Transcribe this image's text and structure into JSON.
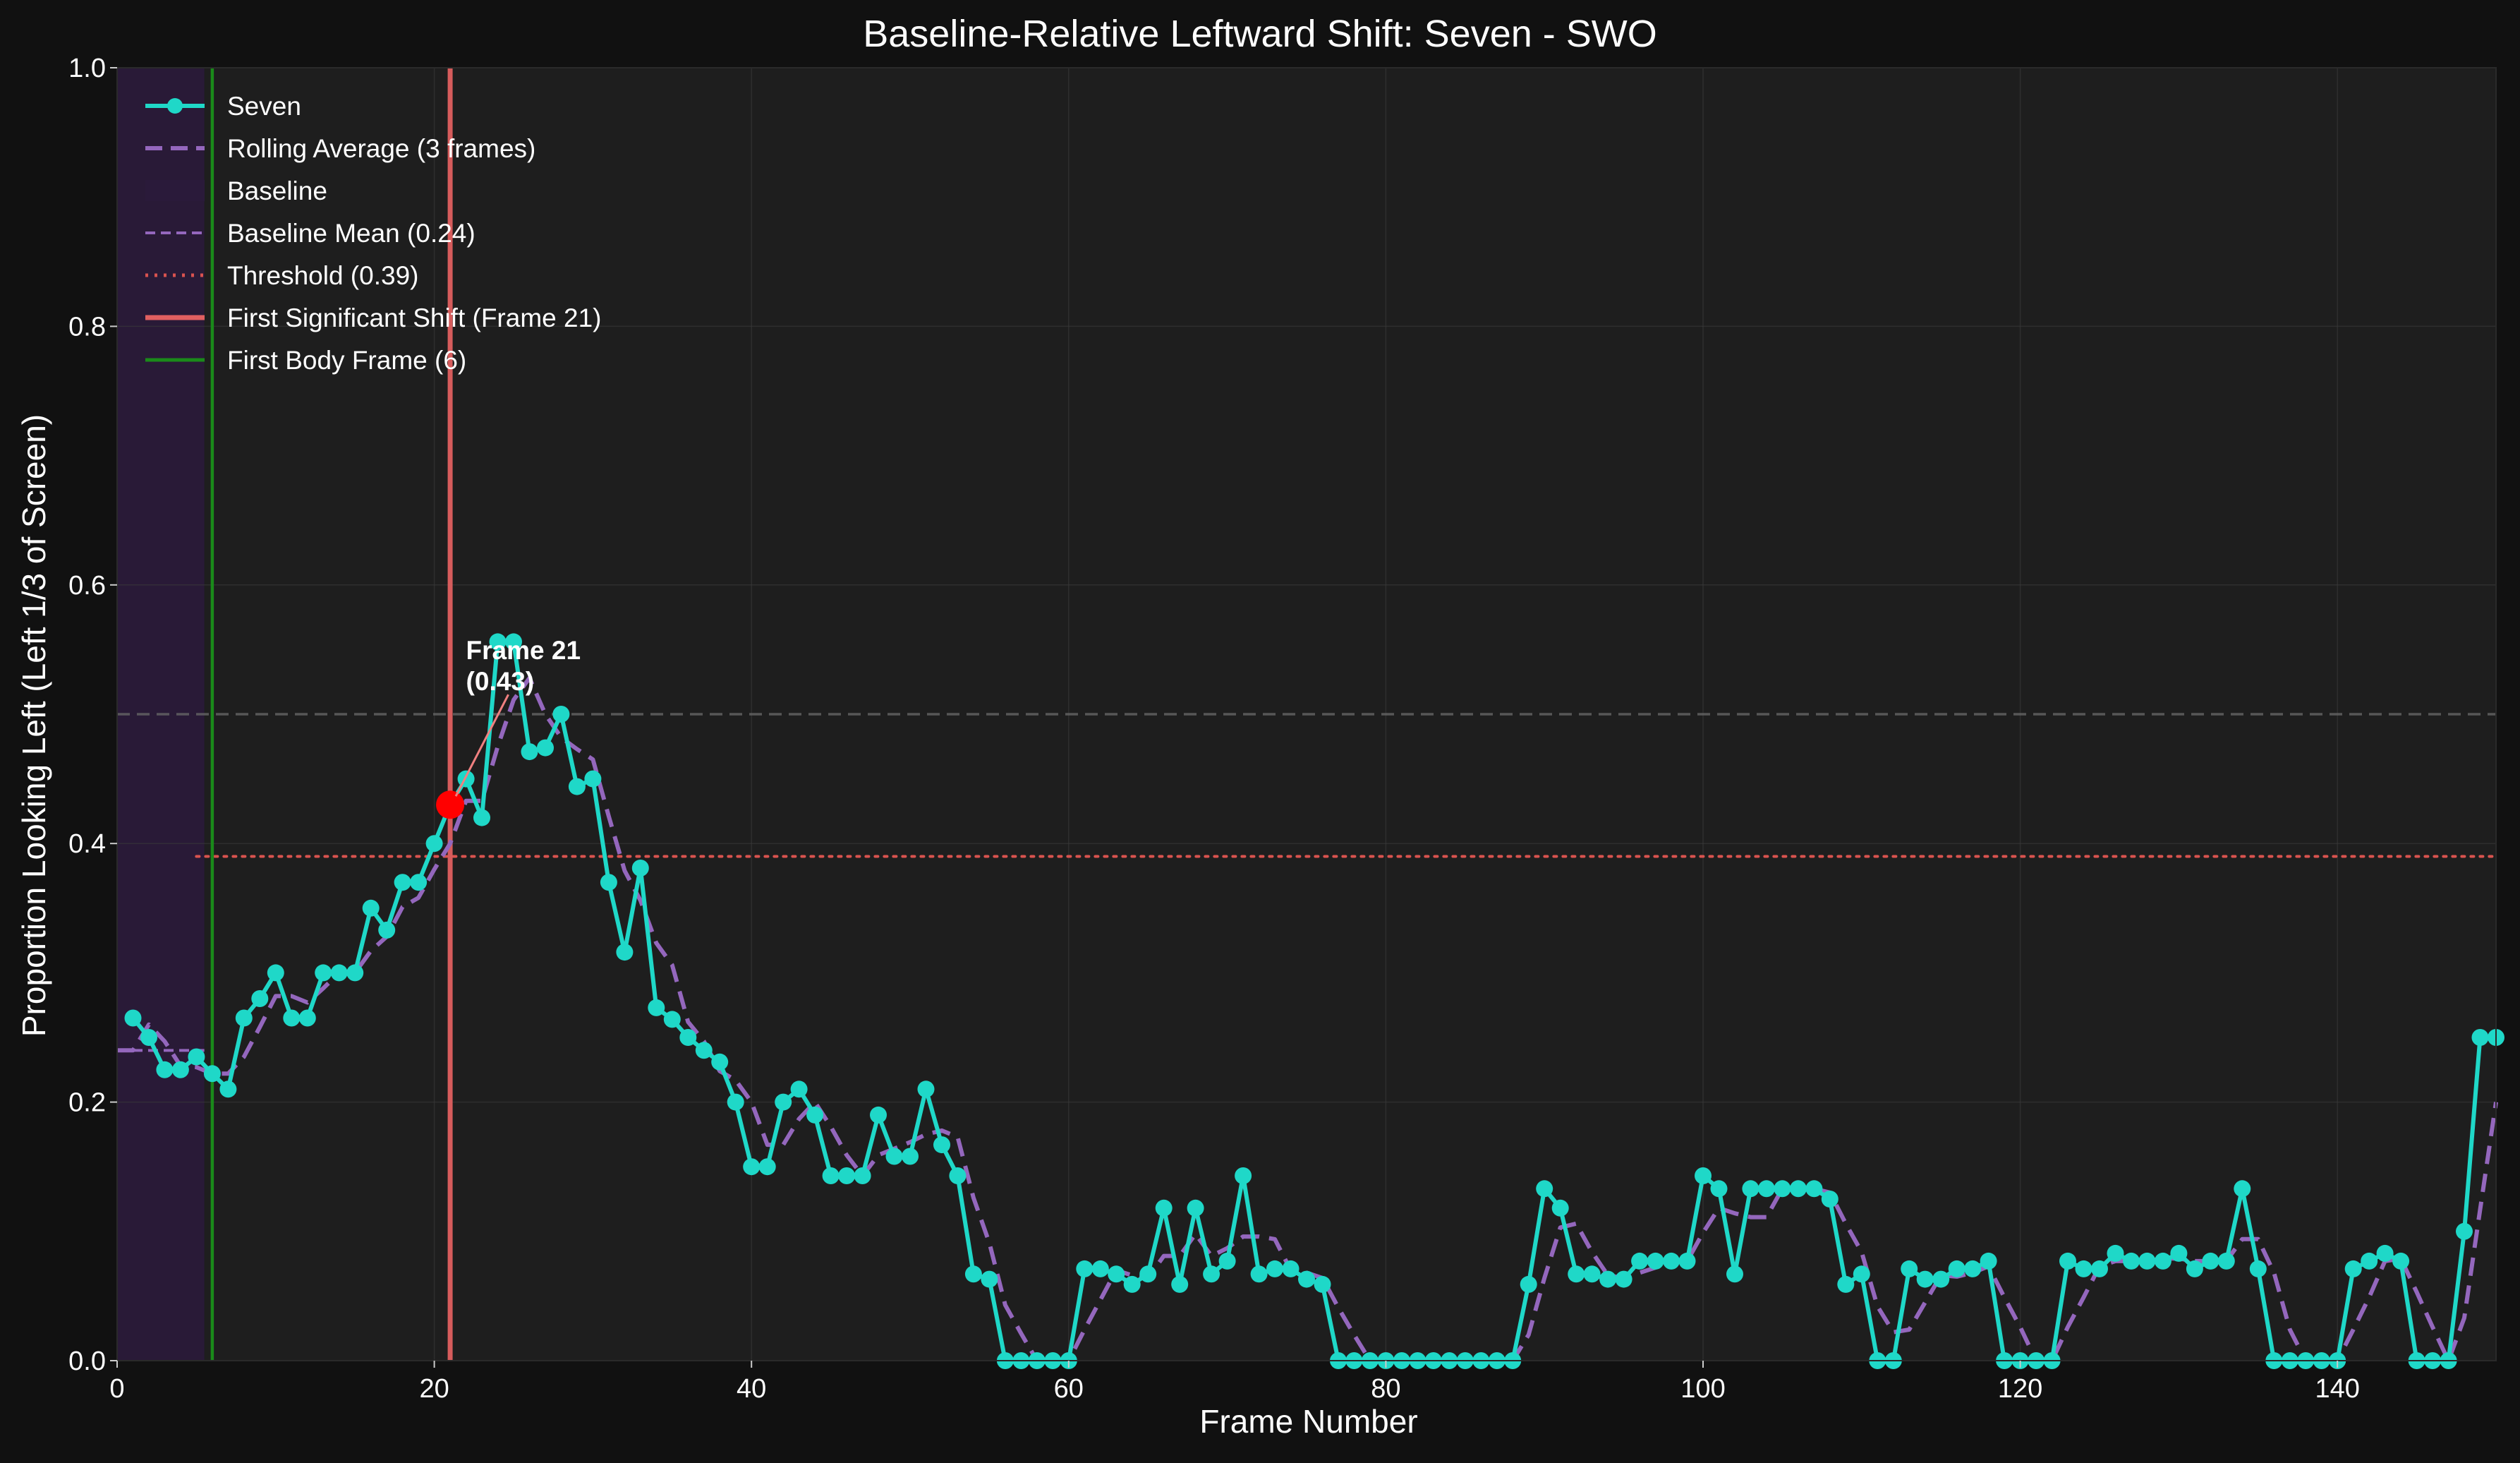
{
  "chart_data": {
    "type": "line",
    "title": "Baseline-Relative Leftward Shift: Seven - SWO",
    "xlabel": "Frame Number",
    "ylabel": "Proportion Looking Left (Left 1/3 of Screen)",
    "xlim": [
      0,
      150
    ],
    "ylim": [
      0,
      1.0
    ],
    "x_ticks": [
      0,
      20,
      40,
      60,
      80,
      100,
      120,
      140
    ],
    "y_ticks": [
      0.0,
      0.2,
      0.4,
      0.6,
      0.8,
      1.0
    ],
    "x_tick_labels": [
      "0",
      "20",
      "40",
      "60",
      "80",
      "100",
      "120",
      "140"
    ],
    "y_tick_labels": [
      "0.0",
      "0.2",
      "0.4",
      "0.6",
      "0.8",
      "1.0"
    ],
    "grid": true,
    "legend_position": "top-left",
    "colors": {
      "series": "#1fd8c8",
      "rolling": "#9467bd",
      "baseline_span": "#2a1a3a",
      "threshold": "#d9534f",
      "shift_line": "#e06060",
      "body_line": "#1a8a1a",
      "reference_line": "#666666",
      "marker_highlight": "#ff0000"
    },
    "series": [
      {
        "name": "Seven",
        "x": [
          1,
          2,
          3,
          4,
          5,
          6,
          7,
          8,
          9,
          10,
          11,
          12,
          13,
          14,
          15,
          16,
          17,
          18,
          19,
          20,
          21,
          22,
          23,
          24,
          25,
          26,
          27,
          28,
          29,
          30,
          31,
          32,
          33,
          34,
          35,
          36,
          37,
          38,
          39,
          40,
          41,
          42,
          43,
          44,
          45,
          46,
          47,
          48,
          49,
          50,
          51,
          52,
          53,
          54,
          55,
          56,
          57,
          58,
          59,
          60,
          61,
          62,
          63,
          64,
          65,
          66,
          67,
          68,
          69,
          70,
          71,
          72,
          73,
          74,
          75,
          76,
          77,
          78,
          79,
          80,
          81,
          82,
          83,
          84,
          85,
          86,
          87,
          88,
          89,
          90,
          91,
          92,
          93,
          94,
          95,
          96,
          97,
          98,
          99,
          100,
          101,
          102,
          103,
          104,
          105,
          106,
          107,
          108,
          109,
          110,
          111,
          112,
          113,
          114,
          115,
          116,
          117,
          118,
          119,
          120,
          121,
          122,
          123,
          124,
          125,
          126,
          127,
          128,
          129,
          130,
          131,
          132,
          133,
          134,
          135,
          136,
          137,
          138,
          139,
          140,
          141,
          142,
          143,
          144,
          145,
          146,
          147,
          148,
          149,
          150
        ],
        "y": [
          0.265,
          0.25,
          0.225,
          0.225,
          0.235,
          0.222,
          0.21,
          0.265,
          0.28,
          0.3,
          0.265,
          0.265,
          0.3,
          0.3,
          0.3,
          0.35,
          0.333,
          0.37,
          0.37,
          0.4,
          0.43,
          0.45,
          0.42,
          0.556,
          0.556,
          0.471,
          0.474,
          0.5,
          0.444,
          0.45,
          0.37,
          0.316,
          0.381,
          0.273,
          0.264,
          0.25,
          0.24,
          0.231,
          0.2,
          0.15,
          0.15,
          0.2,
          0.21,
          0.19,
          0.143,
          0.143,
          0.143,
          0.19,
          0.158,
          0.158,
          0.21,
          0.167,
          0.143,
          0.067,
          0.063,
          0.0,
          0.0,
          0.0,
          0.0,
          0.0,
          0.071,
          0.071,
          0.067,
          0.059,
          0.067,
          0.118,
          0.059,
          0.118,
          0.067,
          0.077,
          0.143,
          0.067,
          0.071,
          0.071,
          0.063,
          0.059,
          0.0,
          0.0,
          0.0,
          0.0,
          0.0,
          0.0,
          0.0,
          0.0,
          0.0,
          0.0,
          0.0,
          0.0,
          0.059,
          0.133,
          0.118,
          0.067,
          0.067,
          0.063,
          0.063,
          0.077,
          0.077,
          0.077,
          0.077,
          0.143,
          0.133,
          0.067,
          0.133,
          0.133,
          0.133,
          0.133,
          0.133,
          0.125,
          0.059,
          0.067,
          0.0,
          0.0,
          0.071,
          0.063,
          0.063,
          0.071,
          0.071,
          0.077,
          0.0,
          0.0,
          0.0,
          0.0,
          0.077,
          0.071,
          0.071,
          0.083,
          0.077,
          0.077,
          0.077,
          0.083,
          0.071,
          0.077,
          0.077,
          0.133,
          0.071,
          0.0,
          0.0,
          0.0,
          0.0,
          0.0,
          0.071,
          0.077,
          0.083,
          0.077,
          0.0,
          0.0,
          0.0,
          0.1,
          0.25,
          0.25
        ]
      },
      {
        "name": "Rolling Average (3 frames)",
        "x": [
          0,
          1,
          2,
          3,
          4,
          5,
          6,
          7,
          8,
          9,
          10,
          11,
          12,
          13,
          14,
          15,
          16,
          17,
          18,
          19,
          20,
          21,
          22,
          23,
          24,
          25,
          26,
          27,
          28,
          29,
          30,
          31,
          32,
          33,
          34,
          35,
          36,
          37,
          38,
          39,
          40,
          41,
          42,
          43,
          44,
          45,
          46,
          47,
          48,
          49,
          50,
          51,
          52,
          53,
          54,
          55,
          56,
          57,
          58,
          59,
          60,
          61,
          62,
          63,
          64,
          65,
          66,
          67,
          68,
          69,
          70,
          71,
          72,
          73,
          74,
          75,
          76,
          77,
          78,
          79,
          80,
          81,
          82,
          83,
          84,
          85,
          86,
          87,
          88,
          89,
          90,
          91,
          92,
          93,
          94,
          95,
          96,
          97,
          98,
          99,
          100,
          101,
          102,
          103,
          104,
          105,
          106,
          107,
          108,
          109,
          110,
          111,
          112,
          113,
          114,
          115,
          116,
          117,
          118,
          119,
          120,
          121,
          122,
          123,
          124,
          125,
          126,
          127,
          128,
          129,
          130,
          131,
          132,
          133,
          134,
          135,
          136,
          137,
          138,
          139,
          140,
          141,
          142,
          143,
          144,
          145,
          146,
          147,
          148,
          149,
          150
        ],
        "y": [
          0.24,
          0.24,
          0.26,
          0.247,
          0.228,
          0.227,
          0.222,
          0.222,
          0.235,
          0.258,
          0.282,
          0.282,
          0.277,
          0.288,
          0.3,
          0.3,
          0.317,
          0.328,
          0.351,
          0.358,
          0.38,
          0.4,
          0.433,
          0.433,
          0.475,
          0.511,
          0.528,
          0.5,
          0.482,
          0.473,
          0.465,
          0.421,
          0.379,
          0.356,
          0.323,
          0.306,
          0.262,
          0.247,
          0.224,
          0.217,
          0.2,
          0.167,
          0.167,
          0.187,
          0.2,
          0.181,
          0.159,
          0.143,
          0.159,
          0.164,
          0.169,
          0.175,
          0.178,
          0.173,
          0.126,
          0.091,
          0.043,
          0.021,
          0.0,
          0.0,
          0.0,
          0.024,
          0.047,
          0.07,
          0.066,
          0.064,
          0.081,
          0.081,
          0.098,
          0.081,
          0.087,
          0.096,
          0.096,
          0.094,
          0.07,
          0.068,
          0.064,
          0.041,
          0.02,
          0.0,
          0.0,
          0.0,
          0.0,
          0.0,
          0.0,
          0.0,
          0.0,
          0.0,
          0.0,
          0.02,
          0.064,
          0.103,
          0.106,
          0.084,
          0.066,
          0.064,
          0.068,
          0.072,
          0.077,
          0.077,
          0.099,
          0.118,
          0.114,
          0.111,
          0.111,
          0.133,
          0.133,
          0.133,
          0.13,
          0.106,
          0.084,
          0.042,
          0.022,
          0.024,
          0.045,
          0.066,
          0.065,
          0.068,
          0.073,
          0.049,
          0.026,
          0.0,
          0.0,
          0.026,
          0.049,
          0.073,
          0.077,
          0.077,
          0.077,
          0.079,
          0.079,
          0.077,
          0.077,
          0.077,
          0.094,
          0.094,
          0.068,
          0.024,
          0.0,
          0.0,
          0.0,
          0.024,
          0.049,
          0.077,
          0.079,
          0.053,
          0.026,
          0.0,
          0.033,
          0.117,
          0.2
        ]
      }
    ],
    "baseline_span": {
      "label": "Baseline",
      "x_start": 0,
      "x_end": 5.5
    },
    "baseline_mean": {
      "label": "Baseline Mean (0.24)",
      "value": 0.24,
      "x_start": 0,
      "x_end": 5.5
    },
    "threshold": {
      "label": "Threshold (0.39)",
      "value": 0.39,
      "x_start": 5,
      "x_end": 150
    },
    "first_shift": {
      "label": "First Significant Shift (Frame 21)",
      "frame": 21,
      "value": 0.43
    },
    "first_body": {
      "label": "First Body Frame (6)",
      "frame": 6
    },
    "reference_line": {
      "value": 0.5
    },
    "annotation": {
      "line1": "Frame 21",
      "line2": "(0.43)",
      "text_x": 22,
      "text_y": 0.525,
      "target_x": 21,
      "target_y": 0.43
    }
  }
}
